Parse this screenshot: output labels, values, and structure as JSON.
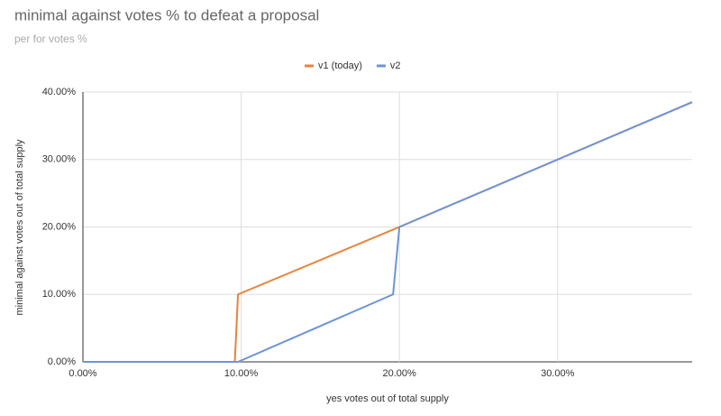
{
  "chart_data": {
    "type": "line",
    "title": "minimal against votes % to defeat a proposal",
    "subtitle": "per for votes %",
    "x_label": "yes votes out of total supply",
    "y_label": "minimal against votes out of total supply",
    "series": [
      {
        "name": "v1 (today)",
        "color": "#e8833a",
        "x": [
          0,
          9.6,
          9.8,
          20,
          38.5
        ],
        "values": [
          0,
          0,
          10,
          20,
          38.5
        ]
      },
      {
        "name": "v2",
        "color": "#6d94d6",
        "x": [
          0,
          9.8,
          19.6,
          20,
          38.5
        ],
        "values": [
          0,
          0,
          10,
          20,
          38.5
        ]
      }
    ],
    "xlim": [
      0,
      38.5
    ],
    "ylim": [
      0,
      40
    ],
    "xticks": [
      {
        "value": 0,
        "label": "0.00%"
      },
      {
        "value": 10,
        "label": "10.00%"
      },
      {
        "value": 20,
        "label": "20.00%"
      },
      {
        "value": 30,
        "label": "30.00%"
      }
    ],
    "yticks": [
      {
        "value": 0,
        "label": "0.00%"
      },
      {
        "value": 10,
        "label": "10.00%"
      },
      {
        "value": 20,
        "label": "20.00%"
      },
      {
        "value": 30,
        "label": "30.00%"
      },
      {
        "value": 40,
        "label": "40.00%"
      }
    ],
    "grid": true,
    "legend": "top"
  }
}
